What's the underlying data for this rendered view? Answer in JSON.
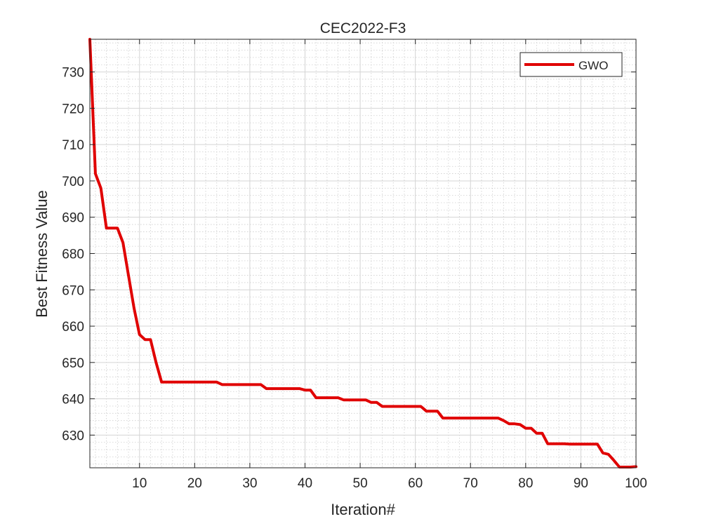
{
  "chart_data": {
    "type": "line",
    "title": "CEC2022-F3",
    "xlabel": "Iteration#",
    "ylabel": "Best Fitness Value",
    "xlim": [
      1,
      100
    ],
    "ylim": [
      621,
      739
    ],
    "xticks": [
      10,
      20,
      30,
      40,
      50,
      60,
      70,
      80,
      90,
      100
    ],
    "yticks": [
      630,
      640,
      650,
      660,
      670,
      680,
      690,
      700,
      710,
      720,
      730
    ],
    "grid": true,
    "minor_grid": true,
    "legend_position": "top-right",
    "series": [
      {
        "name": "GWO",
        "color": "#e00000",
        "x": [
          1,
          2,
          3,
          4,
          5,
          6,
          7,
          8,
          9,
          10,
          11,
          12,
          13,
          14,
          15,
          16,
          17,
          18,
          19,
          20,
          21,
          22,
          23,
          24,
          25,
          26,
          27,
          28,
          29,
          30,
          31,
          32,
          33,
          34,
          35,
          36,
          37,
          38,
          39,
          40,
          41,
          42,
          43,
          44,
          45,
          46,
          47,
          48,
          49,
          50,
          51,
          52,
          53,
          54,
          55,
          56,
          57,
          58,
          59,
          60,
          61,
          62,
          63,
          64,
          65,
          66,
          67,
          68,
          69,
          70,
          71,
          72,
          73,
          74,
          75,
          76,
          77,
          78,
          79,
          80,
          81,
          82,
          83,
          84,
          85,
          86,
          87,
          88,
          89,
          90,
          91,
          92,
          93,
          94,
          95,
          96,
          97,
          98,
          99,
          100
        ],
        "y": [
          739,
          702,
          698,
          687,
          687,
          687,
          683,
          674,
          665,
          657.7,
          656.3,
          656.3,
          650,
          644.6,
          644.6,
          644.6,
          644.6,
          644.6,
          644.6,
          644.6,
          644.6,
          644.6,
          644.6,
          644.6,
          643.9,
          643.9,
          643.9,
          643.9,
          643.9,
          643.9,
          643.9,
          643.9,
          642.8,
          642.8,
          642.8,
          642.8,
          642.8,
          642.8,
          642.8,
          642.4,
          642.4,
          640.3,
          640.3,
          640.3,
          640.3,
          640.3,
          639.7,
          639.7,
          639.7,
          639.7,
          639.7,
          639.0,
          639.0,
          637.9,
          637.9,
          637.9,
          637.9,
          637.9,
          637.9,
          637.9,
          637.9,
          636.6,
          636.6,
          636.6,
          634.7,
          634.7,
          634.7,
          634.7,
          634.7,
          634.7,
          634.7,
          634.7,
          634.7,
          634.7,
          634.7,
          634.0,
          633.1,
          633.1,
          632.9,
          631.9,
          631.9,
          630.5,
          630.5,
          627.6,
          627.6,
          627.6,
          627.6,
          627.5,
          627.5,
          627.5,
          627.5,
          627.5,
          627.5,
          625.1,
          624.7,
          623.0,
          621.2,
          621.2,
          621.2,
          621.3
        ]
      }
    ]
  }
}
